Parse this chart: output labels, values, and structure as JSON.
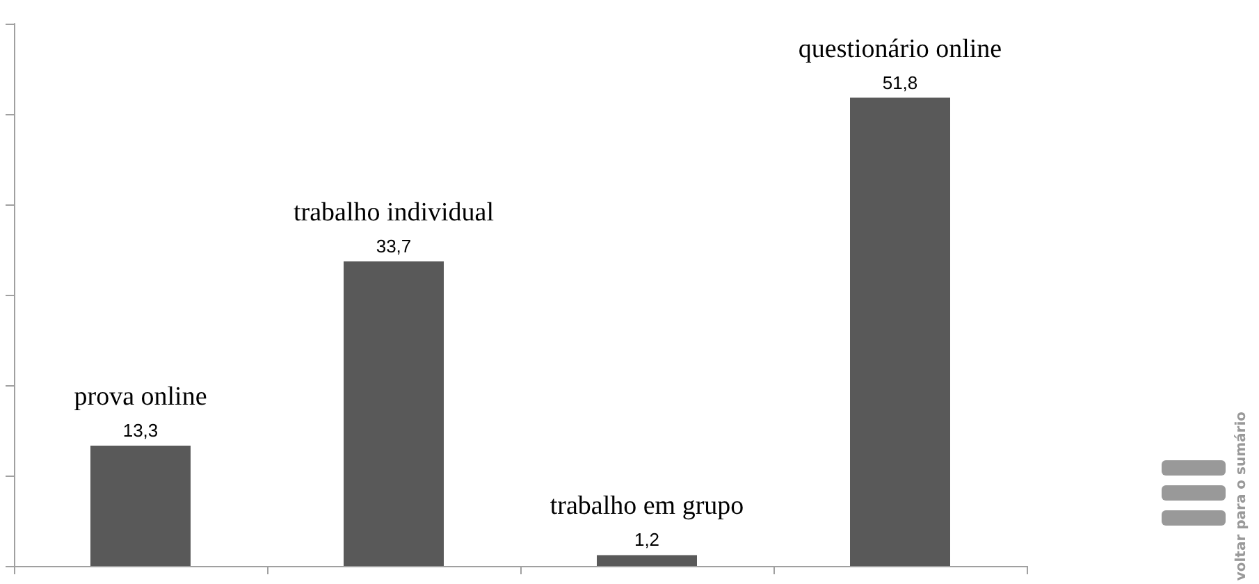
{
  "chart_data": {
    "type": "bar",
    "categories": [
      "prova online",
      "trabalho individual",
      "trabalho em grupo",
      "questionário online"
    ],
    "values": [
      13.3,
      33.7,
      1.2,
      51.8
    ],
    "color": "#595959",
    "value_labels": [
      "13,3",
      "33,7",
      "1,2",
      "51,8"
    ],
    "tick_labels": false,
    "annotations": [
      "voltar para o sumário"
    ]
  }
}
